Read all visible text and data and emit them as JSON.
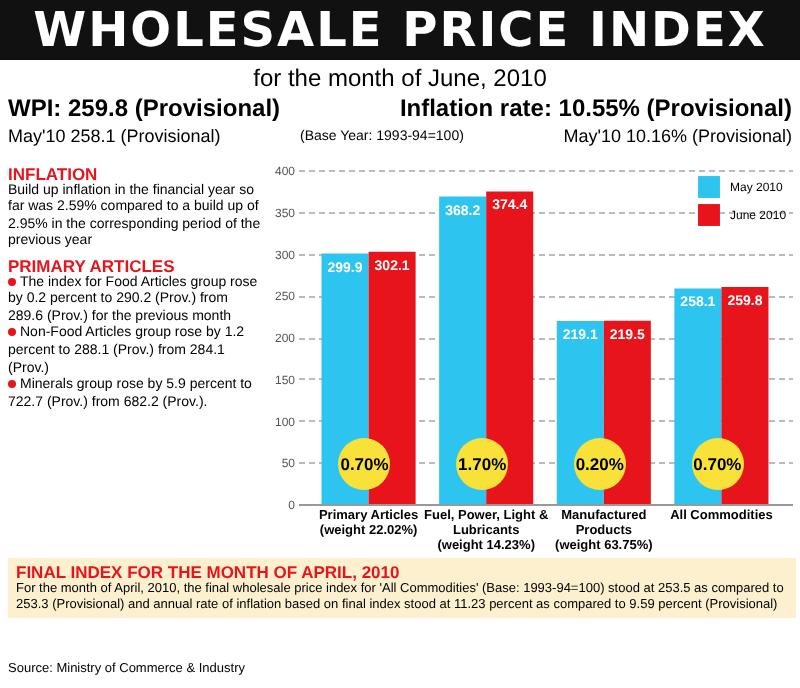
{
  "chart_data": {
    "type": "bar",
    "title": "WHOLESALE PRICE INDEX",
    "subtitle": "for the month of June, 2010",
    "categories": [
      "Primary Articles\n(weight 22.02%)",
      "Fuel, Power, Light &\nLubricants\n(weight 14.23%)",
      "Manufactured\nProducts\n(weight 63.75%)",
      "All Commodities"
    ],
    "series": [
      {
        "name": "May 2010",
        "color": "#2ec4f0",
        "values": [
          299.9,
          368.2,
          219.1,
          258.1
        ]
      },
      {
        "name": "June 2010",
        "color": "#e8141c",
        "values": [
          302.1,
          374.4,
          219.5,
          259.8
        ]
      }
    ],
    "ylim": [
      0,
      400
    ],
    "yticks": [
      0,
      50,
      100,
      150,
      200,
      250,
      300,
      350,
      400
    ],
    "grid": "y",
    "legend": "top right",
    "data_labels": true,
    "annotations": [
      "WPI: 259.8 (Provisional)",
      "May'10 258.1 (Provisional)",
      "(Base Year: 1993-94=100)",
      "Inflation rate: 10.55% (Provisional)",
      "May'10 10.16% (Provisional)",
      "INFLATION",
      "Build up inflation in the financial year so far was 2.59% compared to a build up of 2.95% in the corresponding period of the previous year",
      "PRIMARY ARTICLES",
      "The index for Food Articles group rose by 0.2 percent to 290.2 (Prov.) from 289.6 (Prov.) for the previous month",
      "Non-Food Articles group rose by 1.2 percent to 288.1 (Prov.) from 284.1 (Prov.)",
      "Minerals group rose by 5.9 percent to 722.7 (Prov.) from 682.2 (Prov.).",
      "FINAL INDEX FOR THE MONTH OF APRIL, 2010",
      "For the month of April, 2010, the final wholesale price index for 'All Commodities' (Base: 1993-94=100) stood at 253.5 as compared to 253.3 (Provisional) and annual rate of inflation based on final index stood at 11.23 percent as compared to 9.59 percent (Provisional)",
      "Source: Ministry of Commerce & Industry",
      "0.70%",
      "1.70%",
      "0.20%",
      "0.70%"
    ]
  }
}
